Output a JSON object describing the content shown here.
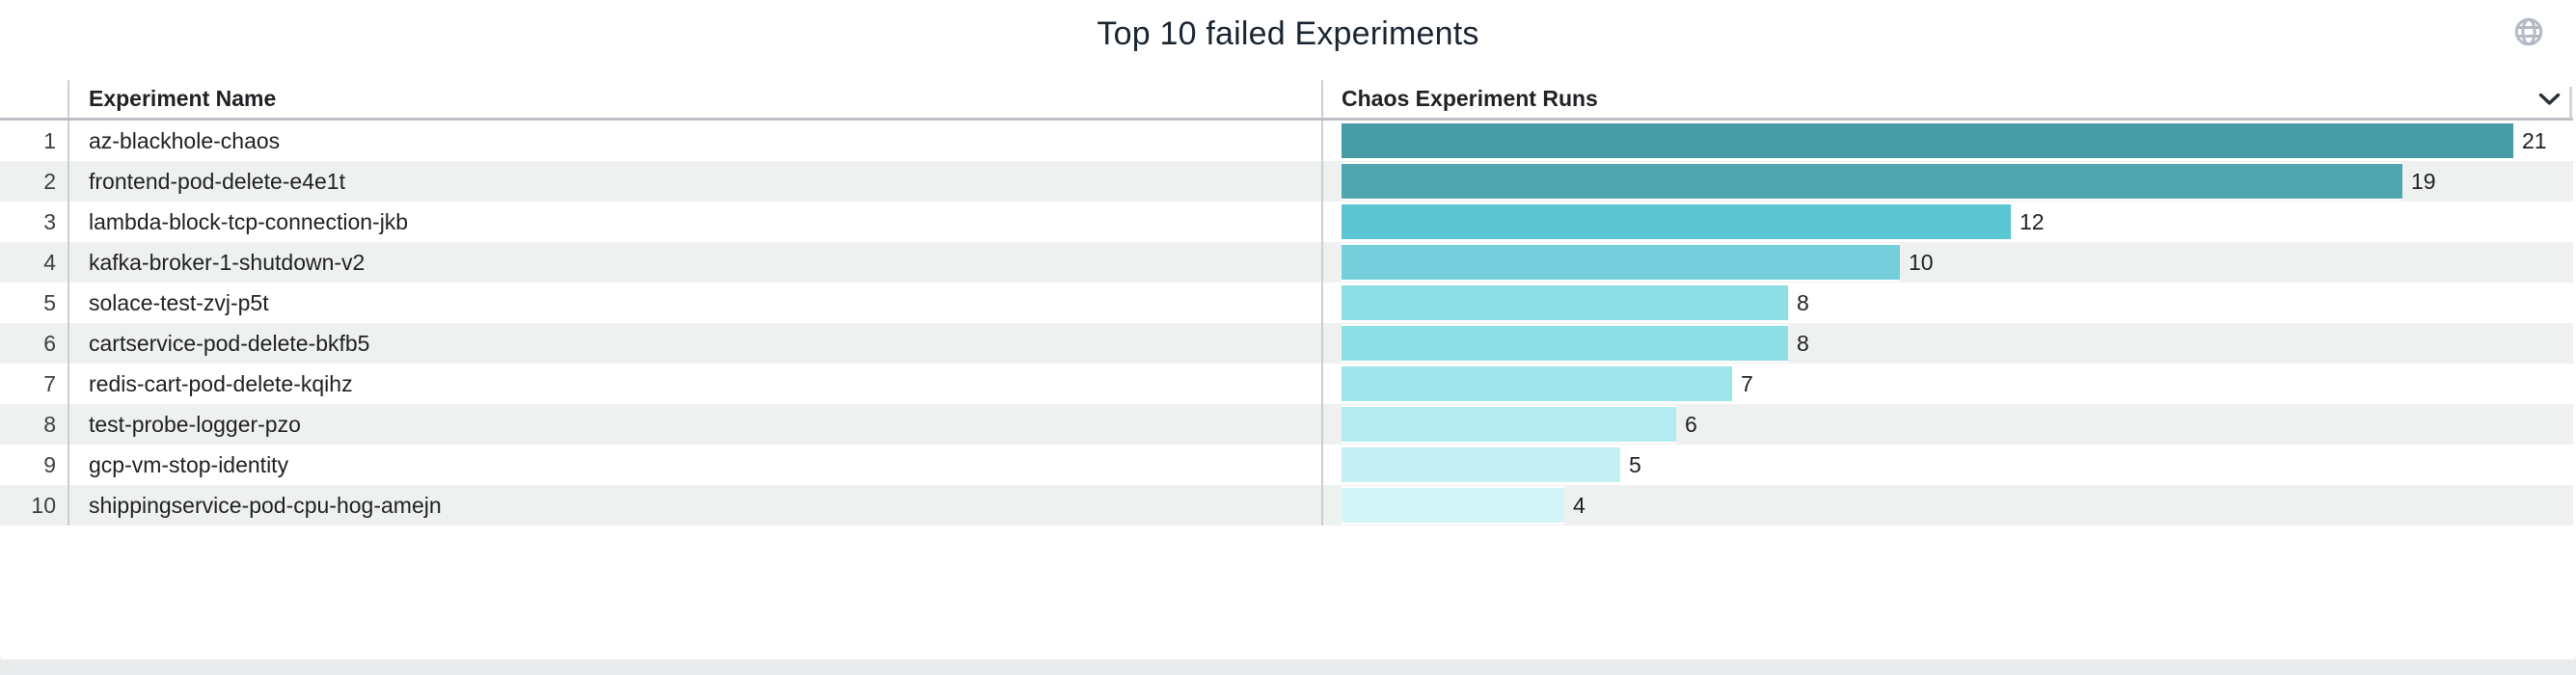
{
  "header": {
    "title": "Top 10 failed Experiments",
    "globe_icon": "globe-icon",
    "title_color": "#1b2532",
    "globe_icon_color": "#b4bac4"
  },
  "table": {
    "sort_chevron_icon": "chevron-down-icon",
    "row_stripe_color": "#eff1f1",
    "header_border_color": "#bcc0c4"
  },
  "chart_data": {
    "type": "bar",
    "orientation": "horizontal",
    "title": "Top 10 failed Experiments",
    "columns": [
      "Experiment Name",
      "Chaos Experiment Runs"
    ],
    "ranks": [
      1,
      2,
      3,
      4,
      5,
      6,
      7,
      8,
      9,
      10
    ],
    "categories": [
      "az-blackhole-chaos",
      "frontend-pod-delete-e4e1t",
      "lambda-block-tcp-connection-jkb",
      "kafka-broker-1-shutdown-v2",
      "solace-test-zvj-p5t",
      "cartservice-pod-delete-bkfb5",
      "redis-cart-pod-delete-kqihz",
      "test-probe-logger-pzo",
      "gcp-vm-stop-identity",
      "shippingservice-pod-cpu-hog-amejn"
    ],
    "values": [
      21,
      19,
      12,
      10,
      8,
      8,
      7,
      6,
      5,
      4
    ],
    "bar_colors": [
      "#479CA6",
      "#4FA6AF",
      "#5BC5D2",
      "#74CFDA",
      "#8EDEE6",
      "#8EDEE6",
      "#A0E4EB",
      "#B3EBF0",
      "#C5F0F4",
      "#D4F5F8"
    ],
    "xlim": [
      0,
      22.1
    ],
    "value_labels_shown": true,
    "grid": false,
    "legend": "none"
  }
}
